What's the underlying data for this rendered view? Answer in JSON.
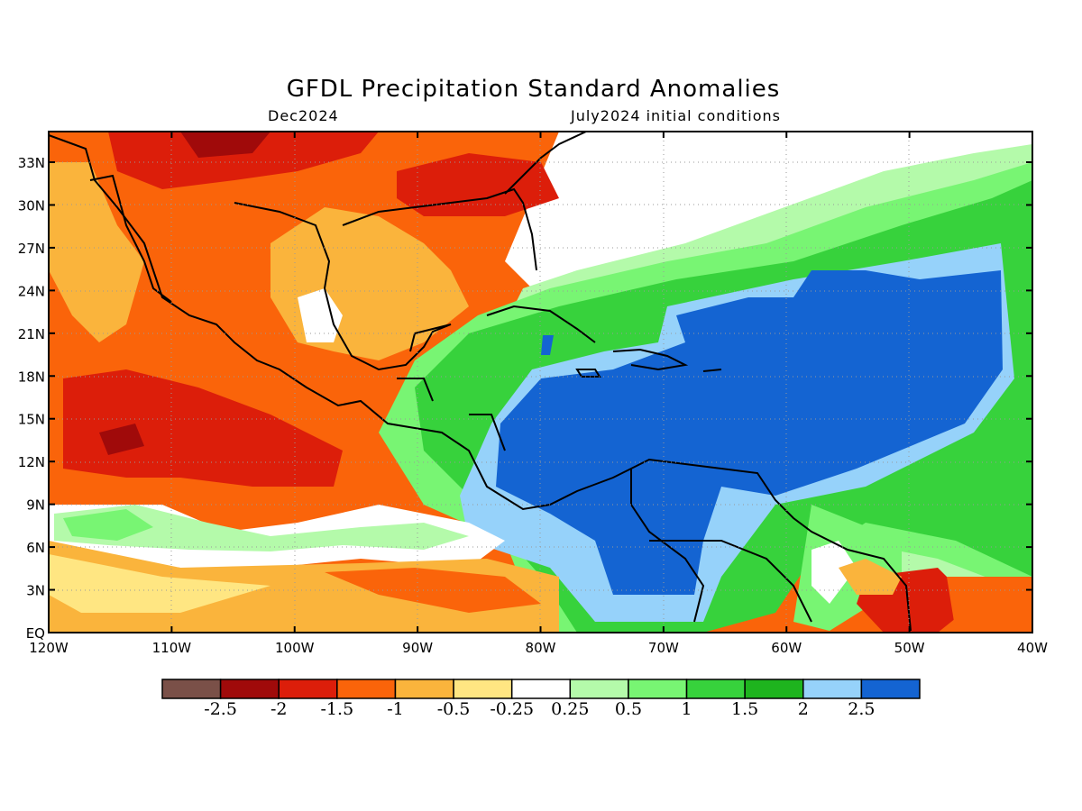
{
  "title": "GFDL Precipitation Standard Anomalies",
  "left_subtitle": "Dec2024",
  "right_subtitle": "July2024 initial conditions",
  "lon_ticks": [
    "120W",
    "110W",
    "100W",
    "90W",
    "80W",
    "70W",
    "60W",
    "50W",
    "40W"
  ],
  "lat_ticks": [
    "33N",
    "30N",
    "27N",
    "24N",
    "21N",
    "18N",
    "15N",
    "12N",
    "9N",
    "6N",
    "3N",
    "EQ"
  ],
  "colorbar": {
    "colors": [
      "#7a5048",
      "#a00a0a",
      "#dc1e0a",
      "#fa640a",
      "#fab43c",
      "#ffe682",
      "#ffffff",
      "#b4faaa",
      "#78f573",
      "#37d23c",
      "#1eb41e",
      "#96d2fa",
      "#1464d2"
    ],
    "labels": [
      "-2.5",
      "-2",
      "-1.5",
      "-1",
      "-0.5",
      "-0.25",
      "0.25",
      "0.5",
      "1",
      "1.5",
      "2",
      "2.5"
    ]
  },
  "palette": {
    "very_dry": "#dc1e0a",
    "dry": "#fa640a",
    "mod_dry": "#fab43c",
    "slight_dry": "#ffe682",
    "neutral": "#ffffff",
    "slight_wet": "#b4faaa",
    "mod_wet": "#78f573",
    "wet": "#37d23c",
    "very_wet": "#1eb41e",
    "wetter": "#96d2fa",
    "wettest": "#1464d2",
    "extreme_dry": "#a00a0a"
  }
}
